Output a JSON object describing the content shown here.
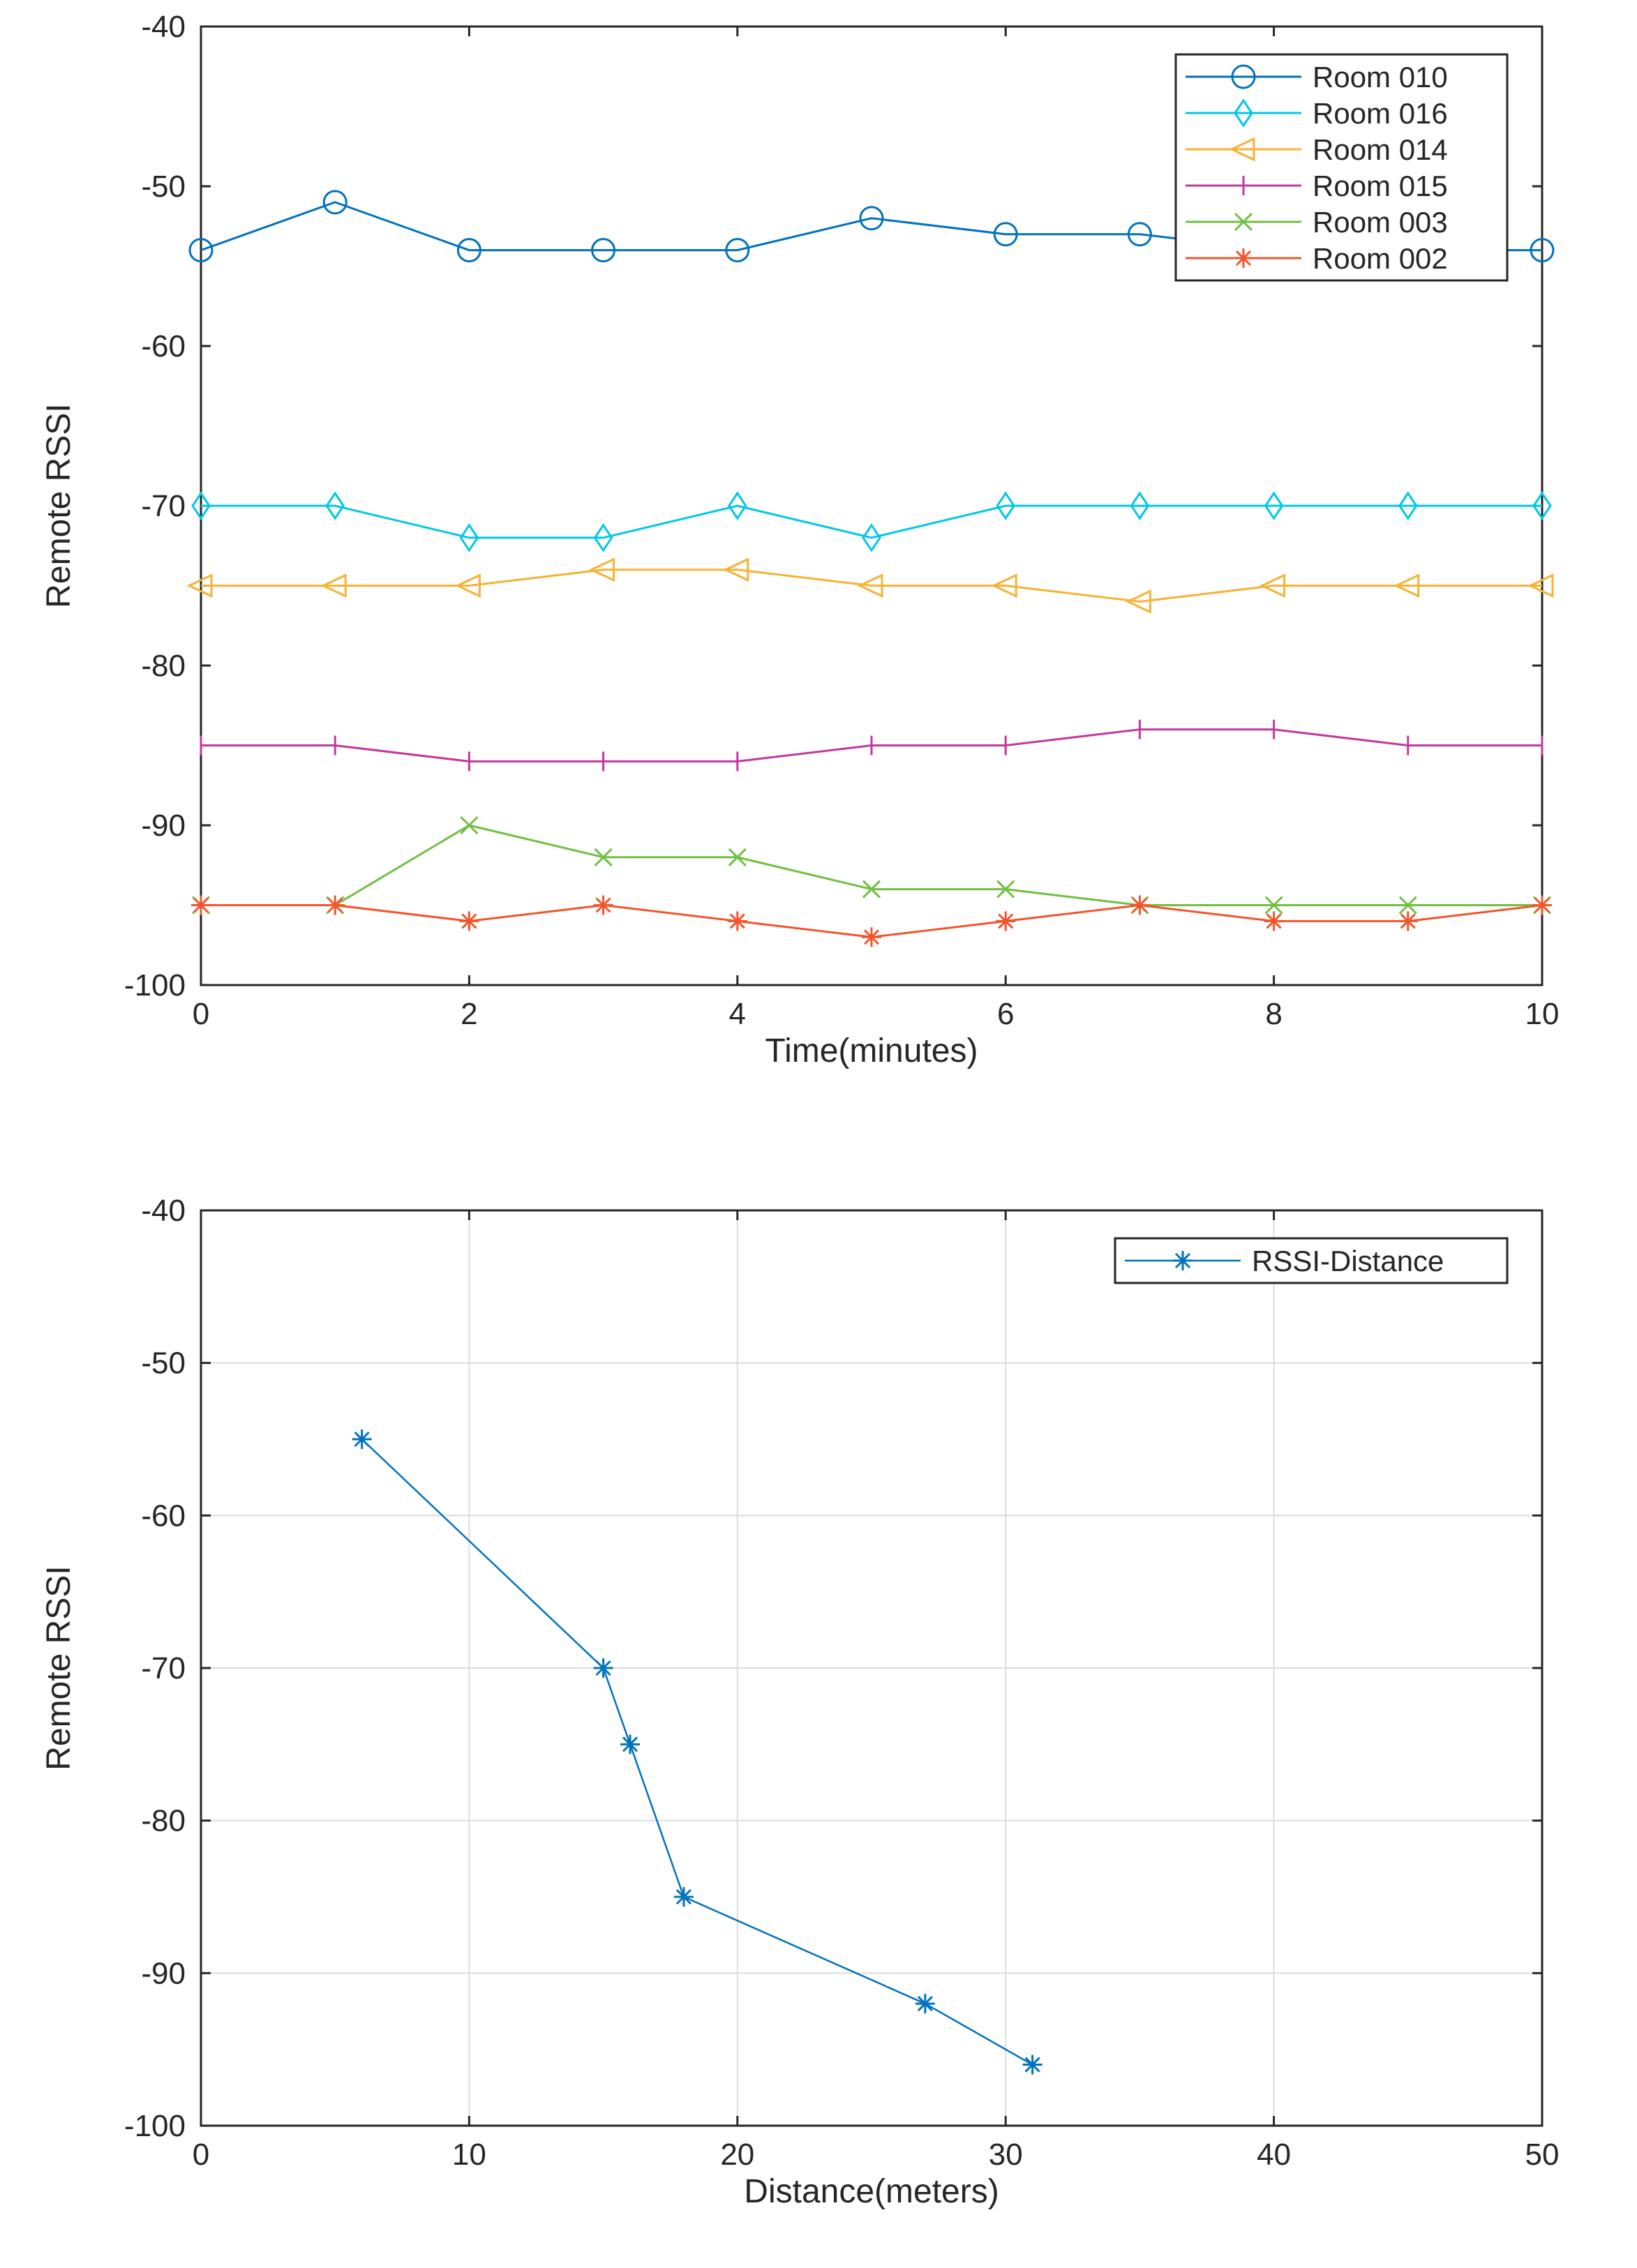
{
  "chart_data": [
    {
      "type": "line",
      "title": "",
      "xlabel": "Time(minutes)",
      "ylabel": "Remote RSSI",
      "xlim": [
        0,
        10
      ],
      "ylim": [
        -100,
        -40
      ],
      "x_ticks": [
        0,
        2,
        4,
        6,
        8,
        10
      ],
      "y_ticks": [
        -100,
        -90,
        -80,
        -70,
        -60,
        -50,
        -40
      ],
      "grid": false,
      "legend_position": "top-right",
      "x": [
        0,
        1,
        2,
        3,
        4,
        5,
        6,
        7,
        8,
        9,
        10
      ],
      "series": [
        {
          "name": "Room 010",
          "color": "#0072BD",
          "marker": "circle",
          "values": [
            -54,
            -51,
            -54,
            -54,
            -54,
            -52,
            -53,
            -53,
            -54,
            -54,
            -54
          ]
        },
        {
          "name": "Room 016",
          "color": "#00C8E6",
          "marker": "diamond",
          "values": [
            -70,
            -70,
            -72,
            -72,
            -70,
            -72,
            -70,
            -70,
            -70,
            -70,
            -70
          ]
        },
        {
          "name": "Room 014",
          "color": "#F5B335",
          "marker": "triangle-left",
          "values": [
            -75,
            -75,
            -75,
            -74,
            -74,
            -75,
            -75,
            -76,
            -75,
            -75,
            -75
          ]
        },
        {
          "name": "Room 015",
          "color": "#C2389E",
          "marker": "vline",
          "values": [
            -85,
            -85,
            -86,
            -86,
            -86,
            -85,
            -85,
            -84,
            -84,
            -85,
            -85
          ]
        },
        {
          "name": "Room 003",
          "color": "#70BF41",
          "marker": "x",
          "values": [
            -95,
            -95,
            -90,
            -92,
            -92,
            -94,
            -94,
            -95,
            -95,
            -95,
            -95
          ]
        },
        {
          "name": "Room 002",
          "color": "#F2552C",
          "marker": "star",
          "values": [
            -95,
            -95,
            -96,
            -95,
            -96,
            -97,
            -96,
            -95,
            -96,
            -96,
            -95
          ]
        }
      ]
    },
    {
      "type": "line",
      "title": "",
      "xlabel": "Distance(meters)",
      "ylabel": "Remote RSSI",
      "xlim": [
        0,
        50
      ],
      "ylim": [
        -100,
        -40
      ],
      "x_ticks": [
        0,
        10,
        20,
        30,
        40,
        50
      ],
      "y_ticks": [
        -100,
        -90,
        -80,
        -70,
        -60,
        -50,
        -40
      ],
      "grid": true,
      "legend_position": "top-right",
      "series": [
        {
          "name": "RSSI-Distance",
          "color": "#0072BD",
          "marker": "star",
          "x": [
            6,
            15,
            16,
            18,
            27,
            31
          ],
          "values": [
            -55,
            -70,
            -75,
            -85,
            -92,
            -96
          ]
        }
      ]
    }
  ]
}
